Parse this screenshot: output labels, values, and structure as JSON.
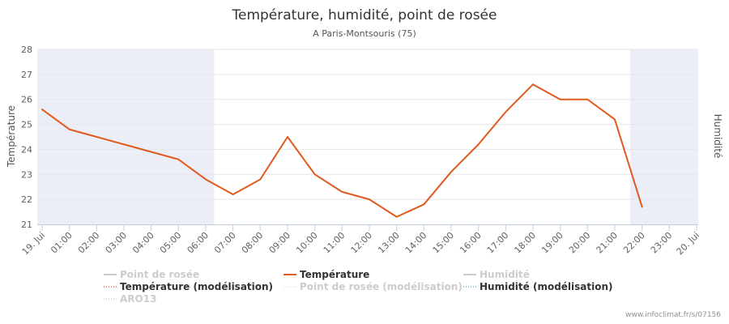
{
  "chart_data": {
    "type": "line",
    "title": "Température, humidité, point de rosée",
    "subtitle": "A Paris-Montsouris (75)",
    "ylabel": "Température",
    "y2label": "Humidité",
    "ylim": [
      21,
      28
    ],
    "yticks": [
      21,
      22,
      23,
      24,
      25,
      26,
      27,
      28
    ],
    "xticks": [
      "19. Jui",
      "01:00",
      "02:00",
      "03:00",
      "04:00",
      "05:00",
      "06:00",
      "07:00",
      "08:00",
      "09:00",
      "10:00",
      "11:00",
      "12:00",
      "13:00",
      "14:00",
      "15:00",
      "16:00",
      "17:00",
      "18:00",
      "19:00",
      "20:00",
      "21:00",
      "22:00",
      "23:00",
      "20. Jui"
    ],
    "xrange_hours": [
      0,
      24
    ],
    "night_bands_hours": [
      [
        0,
        6.25
      ],
      [
        21.75,
        24
      ]
    ],
    "grid": true,
    "series": [
      {
        "name": "Température",
        "color": "#e05a1e",
        "x_hours": [
          0,
          1,
          2,
          3,
          4,
          5,
          6,
          7,
          8,
          9,
          10,
          11,
          12,
          13,
          14,
          15,
          16,
          17,
          18,
          19,
          20,
          21,
          22
        ],
        "values": [
          25.6,
          24.8,
          24.5,
          24.2,
          23.9,
          23.6,
          22.8,
          22.2,
          22.8,
          24.5,
          23.0,
          22.3,
          22.0,
          21.3,
          21.8,
          23.1,
          24.2,
          25.5,
          26.6,
          26.0,
          26.0,
          25.2,
          21.7
        ]
      }
    ],
    "legend": {
      "placement": "bottom",
      "items": [
        {
          "label": "Point de rosée",
          "active": false,
          "style": "solid",
          "color": "#cccccc"
        },
        {
          "label": "Température",
          "active": true,
          "style": "solid",
          "color": "#e05a1e"
        },
        {
          "label": "Humidité",
          "active": false,
          "style": "solid",
          "color": "#cccccc"
        },
        {
          "label": "Température (modélisation)",
          "active": true,
          "style": "dotted",
          "color": "#e05a1e"
        },
        {
          "label": "Point de rosée (modélisation)",
          "active": false,
          "style": "dotted",
          "color": "#dddddd"
        },
        {
          "label": "Humidité (modélisation)",
          "active": true,
          "style": "dotted",
          "color": "#3aa9c4"
        },
        {
          "label": "ARO13",
          "active": false,
          "style": "dotted",
          "color": "#cccccc"
        }
      ]
    }
  },
  "credits": "www.infoclimat.fr/s/07156",
  "colors": {
    "night_band": "#eceef7",
    "grid": "#e6e6e6",
    "axis": "#c0d0e0",
    "tick_text": "#606060",
    "title": "#333333",
    "legend_active": "#333333",
    "legend_inactive": "#cccccc"
  }
}
